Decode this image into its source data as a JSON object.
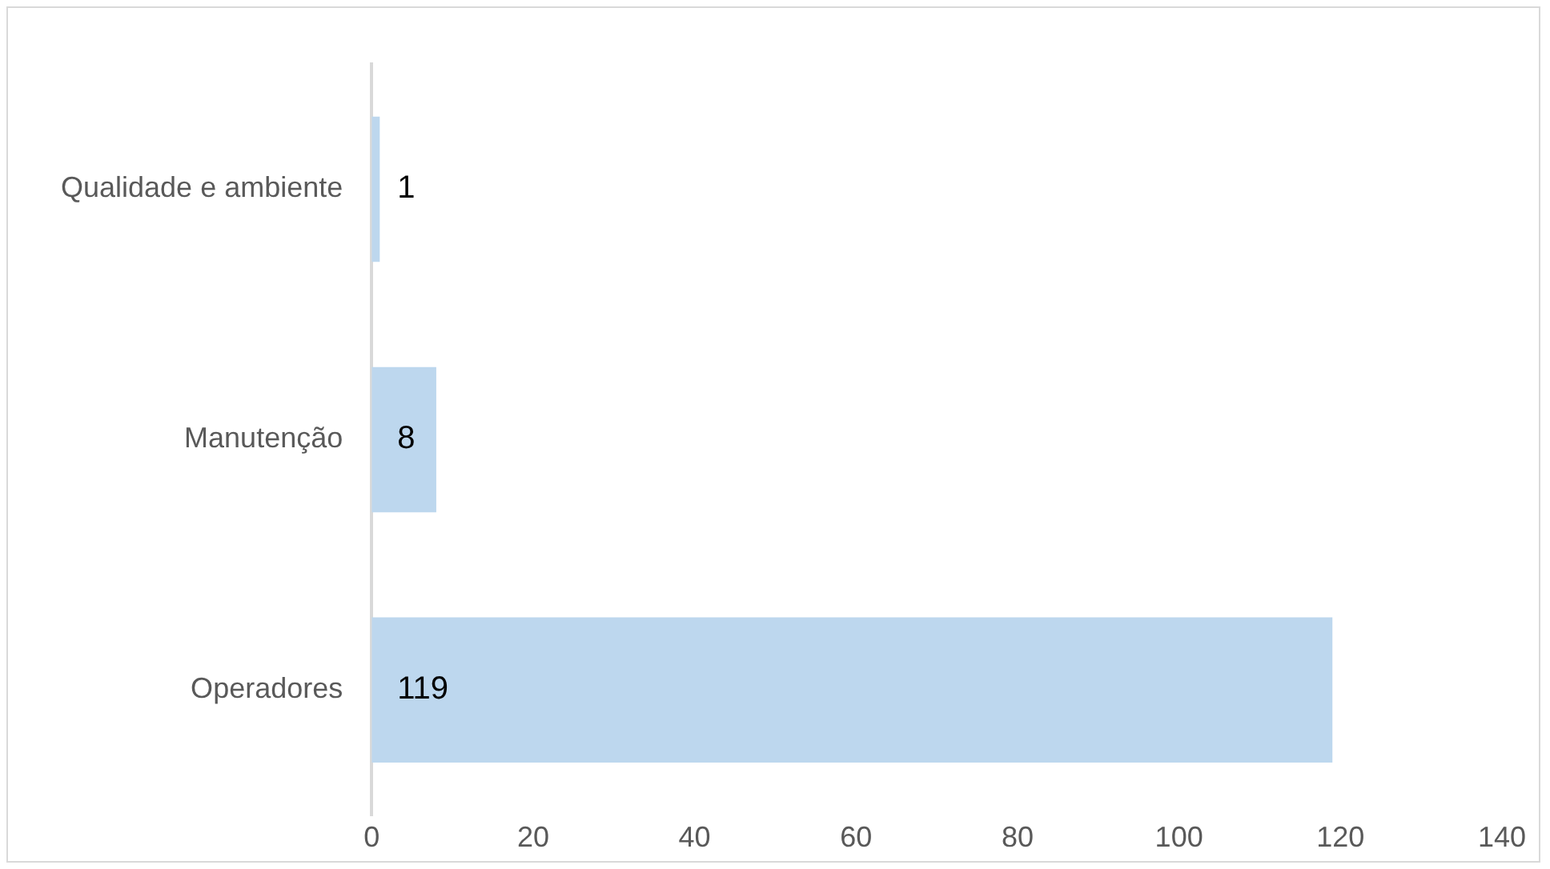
{
  "chart_data": {
    "type": "bar",
    "orientation": "horizontal",
    "categories": [
      "Qualidade e ambiente",
      "Manutenção",
      "Operadores"
    ],
    "values": [
      1,
      8,
      119
    ],
    "color": "#bdd7ee",
    "xlim": [
      0,
      140
    ],
    "xticks": [
      0,
      20,
      40,
      60,
      80,
      100,
      120,
      140
    ],
    "grid": false,
    "legend": false,
    "data_labels": true
  }
}
